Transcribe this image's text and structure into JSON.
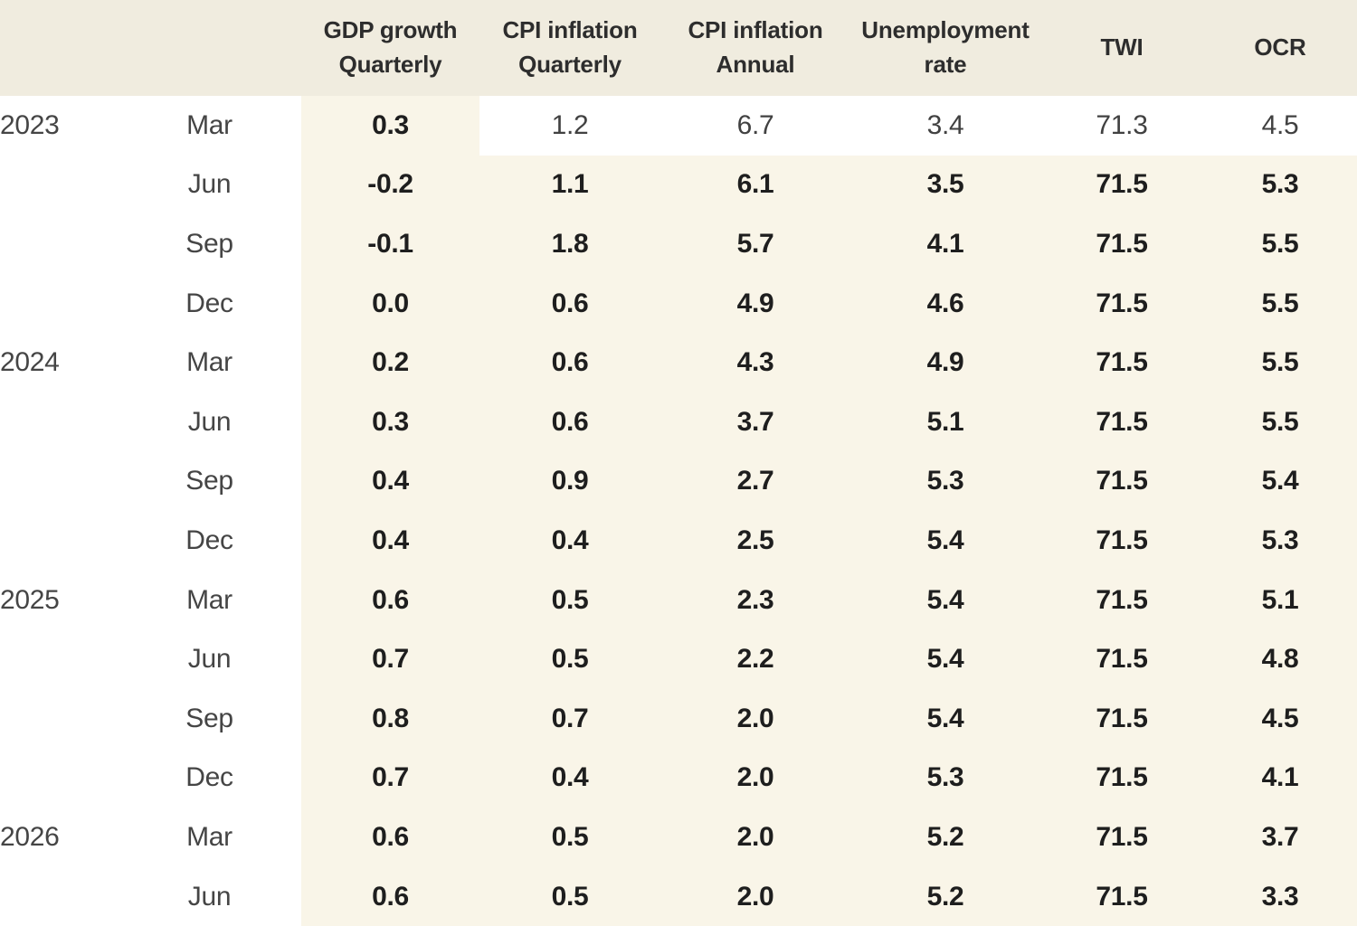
{
  "colors": {
    "header_background": "#f0ecdf",
    "forecast_cell_background": "#f9f5e8",
    "actual_cell_background": "#ffffff",
    "header_text": "#2d2d2d",
    "label_text": "#454545",
    "forecast_text": "#1e1e1e"
  },
  "chart_data": {
    "type": "table",
    "columns": [
      {
        "key": "year",
        "label": ""
      },
      {
        "key": "quarter",
        "label": ""
      },
      {
        "key": "gdp-growth-quarterly",
        "label": "GDP growth Quarterly"
      },
      {
        "key": "cpi-inflation-quarterly",
        "label": "CPI inflation Quarterly"
      },
      {
        "key": "cpi-inflation-annual",
        "label": "CPI inflation Annual"
      },
      {
        "key": "unemployment-rate",
        "label": "Unemployment rate"
      },
      {
        "key": "twi",
        "label": "TWI"
      },
      {
        "key": "ocr",
        "label": "OCR"
      }
    ],
    "value_column_keys": [
      "gdp-growth-quarterly",
      "cpi-inflation-quarterly",
      "cpi-inflation-annual",
      "unemployment-rate",
      "twi",
      "ocr"
    ],
    "rows": [
      {
        "year": "2023",
        "quarter": "Mar",
        "values": [
          "0.3",
          "1.2",
          "6.7",
          "3.4",
          "71.3",
          "4.5"
        ],
        "forecast": [
          true,
          false,
          false,
          false,
          false,
          false
        ]
      },
      {
        "year": "",
        "quarter": "Jun",
        "values": [
          "-0.2",
          "1.1",
          "6.1",
          "3.5",
          "71.5",
          "5.3"
        ],
        "forecast": [
          true,
          true,
          true,
          true,
          true,
          true
        ]
      },
      {
        "year": "",
        "quarter": "Sep",
        "values": [
          "-0.1",
          "1.8",
          "5.7",
          "4.1",
          "71.5",
          "5.5"
        ],
        "forecast": [
          true,
          true,
          true,
          true,
          true,
          true
        ]
      },
      {
        "year": "",
        "quarter": "Dec",
        "values": [
          "0.0",
          "0.6",
          "4.9",
          "4.6",
          "71.5",
          "5.5"
        ],
        "forecast": [
          true,
          true,
          true,
          true,
          true,
          true
        ]
      },
      {
        "year": "2024",
        "quarter": "Mar",
        "values": [
          "0.2",
          "0.6",
          "4.3",
          "4.9",
          "71.5",
          "5.5"
        ],
        "forecast": [
          true,
          true,
          true,
          true,
          true,
          true
        ]
      },
      {
        "year": "",
        "quarter": "Jun",
        "values": [
          "0.3",
          "0.6",
          "3.7",
          "5.1",
          "71.5",
          "5.5"
        ],
        "forecast": [
          true,
          true,
          true,
          true,
          true,
          true
        ]
      },
      {
        "year": "",
        "quarter": "Sep",
        "values": [
          "0.4",
          "0.9",
          "2.7",
          "5.3",
          "71.5",
          "5.4"
        ],
        "forecast": [
          true,
          true,
          true,
          true,
          true,
          true
        ]
      },
      {
        "year": "",
        "quarter": "Dec",
        "values": [
          "0.4",
          "0.4",
          "2.5",
          "5.4",
          "71.5",
          "5.3"
        ],
        "forecast": [
          true,
          true,
          true,
          true,
          true,
          true
        ]
      },
      {
        "year": "2025",
        "quarter": "Mar",
        "values": [
          "0.6",
          "0.5",
          "2.3",
          "5.4",
          "71.5",
          "5.1"
        ],
        "forecast": [
          true,
          true,
          true,
          true,
          true,
          true
        ]
      },
      {
        "year": "",
        "quarter": "Jun",
        "values": [
          "0.7",
          "0.5",
          "2.2",
          "5.4",
          "71.5",
          "4.8"
        ],
        "forecast": [
          true,
          true,
          true,
          true,
          true,
          true
        ]
      },
      {
        "year": "",
        "quarter": "Sep",
        "values": [
          "0.8",
          "0.7",
          "2.0",
          "5.4",
          "71.5",
          "4.5"
        ],
        "forecast": [
          true,
          true,
          true,
          true,
          true,
          true
        ]
      },
      {
        "year": "",
        "quarter": "Dec",
        "values": [
          "0.7",
          "0.4",
          "2.0",
          "5.3",
          "71.5",
          "4.1"
        ],
        "forecast": [
          true,
          true,
          true,
          true,
          true,
          true
        ]
      },
      {
        "year": "2026",
        "quarter": "Mar",
        "values": [
          "0.6",
          "0.5",
          "2.0",
          "5.2",
          "71.5",
          "3.7"
        ],
        "forecast": [
          true,
          true,
          true,
          true,
          true,
          true
        ]
      },
      {
        "year": "",
        "quarter": "Jun",
        "values": [
          "0.6",
          "0.5",
          "2.0",
          "5.2",
          "71.5",
          "3.3"
        ],
        "forecast": [
          true,
          true,
          true,
          true,
          true,
          true
        ]
      }
    ]
  }
}
